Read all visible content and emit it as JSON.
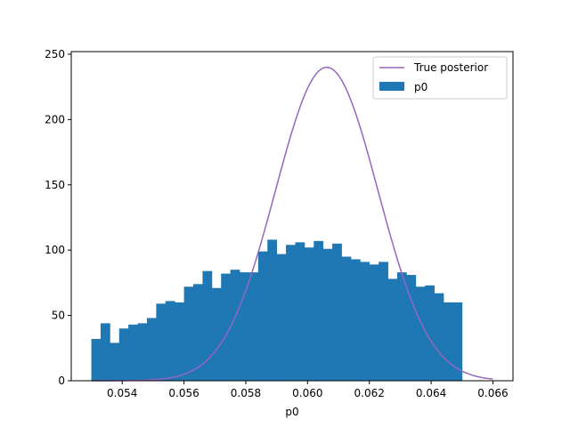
{
  "chart_data": {
    "type": "bar",
    "title": "",
    "xlabel": "p0",
    "ylabel": "",
    "xlim": [
      0.05235,
      0.06665
    ],
    "ylim": [
      0,
      252
    ],
    "xticks": [
      0.054,
      0.056,
      0.058,
      0.06,
      0.062,
      0.064,
      0.066
    ],
    "xtick_labels": [
      "0.054",
      "0.056",
      "0.058",
      "0.060",
      "0.062",
      "0.064",
      "0.066"
    ],
    "yticks": [
      0,
      50,
      100,
      150,
      200,
      250
    ],
    "ytick_labels": [
      "0",
      "50",
      "100",
      "150",
      "200",
      "250"
    ],
    "grid": false,
    "legend_position": "top-right",
    "histogram": {
      "name": "p0",
      "color": "#1f77b4",
      "bin_start": 0.053,
      "bin_width": 0.0003,
      "counts": [
        32,
        44,
        29,
        40,
        43,
        44,
        48,
        59,
        61,
        60,
        72,
        74,
        84,
        71,
        82,
        85,
        83,
        83,
        99,
        108,
        97,
        104,
        106,
        102,
        107,
        101,
        105,
        95,
        93,
        91,
        89,
        91,
        78,
        83,
        81,
        72,
        73,
        67,
        60,
        60
      ]
    },
    "curve": {
      "name": "True posterior",
      "color": "#9467bd",
      "type": "line",
      "mean": 0.06062,
      "std": 0.00166,
      "peak": 240,
      "x_range": [
        0.053,
        0.066
      ]
    }
  }
}
